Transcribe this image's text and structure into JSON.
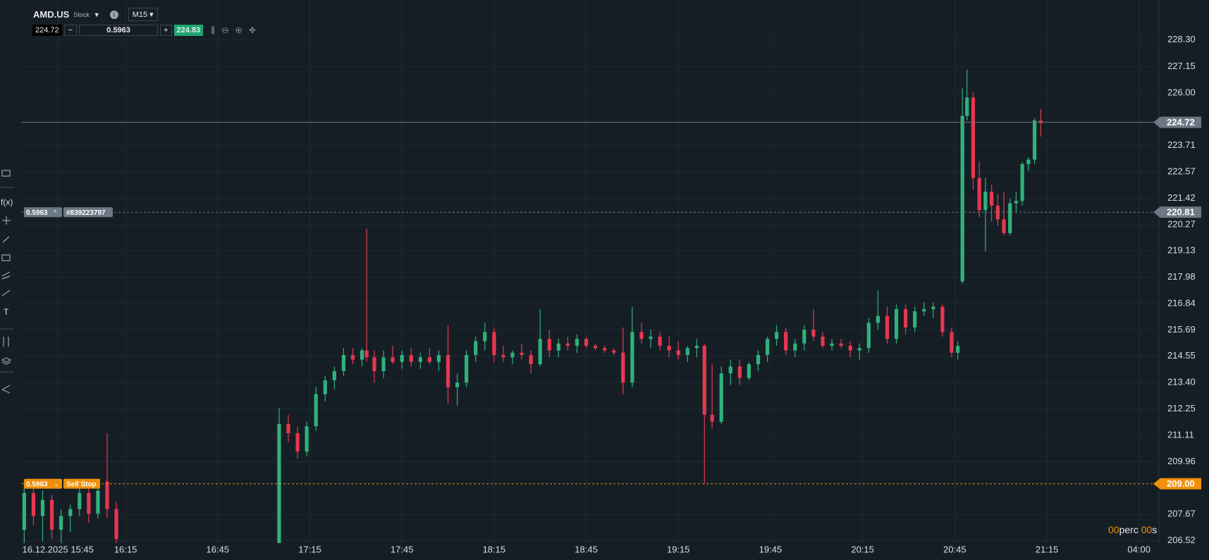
{
  "toolbar": {
    "symbol": "AMD.US",
    "kind": "Stock",
    "timeframe": "M15",
    "bid": 224.72,
    "volume": 0.5963,
    "ask": 224.83
  },
  "tools": {
    "function": "f(x)",
    "text": "T"
  },
  "countdown": {
    "minutes": "00",
    "minutes_unit": "perc",
    "seconds": "00",
    "seconds_unit": "s"
  },
  "chart_data": {
    "type": "candlestick",
    "up_color": "#2fb27b",
    "down_color": "#e5384f",
    "grid": true,
    "xlim": [
      -12,
      358.5
    ],
    "ylim": [
      206.42,
      230.04
    ],
    "xticks": [
      {
        "value": 0,
        "label": "16.12.2025 15:45"
      },
      {
        "value": 22,
        "label": "16:15"
      },
      {
        "value": 52,
        "label": "16:45"
      },
      {
        "value": 82,
        "label": "17:15"
      },
      {
        "value": 112,
        "label": "17:45"
      },
      {
        "value": 142,
        "label": "18:15"
      },
      {
        "value": 172,
        "label": "18:45"
      },
      {
        "value": 202,
        "label": "19:15"
      },
      {
        "value": 232,
        "label": "19:45"
      },
      {
        "value": 262,
        "label": "20:15"
      },
      {
        "value": 292,
        "label": "20:45"
      },
      {
        "value": 322,
        "label": "21:15"
      },
      {
        "value": 352,
        "label": "04:00"
      }
    ],
    "yticks": [
      {
        "value": 228.3,
        "label": "228.30"
      },
      227.15,
      {
        "value": 226,
        "label": "226.00"
      },
      223.71,
      222.57,
      221.42,
      220.27,
      219.13,
      217.98,
      216.84,
      215.69,
      214.55,
      {
        "value": 213.4,
        "label": "213.40"
      },
      212.25,
      211.11,
      209.96,
      207.67,
      206.52
    ],
    "x": [
      -11,
      -8,
      -5,
      -2,
      1,
      4,
      7,
      10,
      13,
      16,
      19,
      72,
      75,
      78,
      81,
      84,
      87,
      90,
      93,
      96,
      99,
      100.5,
      103,
      106,
      109,
      112,
      115,
      118,
      121,
      124,
      127,
      130,
      133,
      136,
      139,
      142,
      145,
      148,
      151,
      154,
      157,
      160,
      163,
      166,
      169,
      172,
      175,
      178,
      181,
      184,
      187,
      190,
      193,
      196,
      199,
      202,
      205,
      208,
      210.5,
      213,
      216,
      219,
      222,
      225,
      228,
      231,
      234,
      237,
      240,
      243,
      246,
      249,
      252,
      255,
      258,
      261,
      264,
      267,
      270,
      273,
      276,
      279,
      282,
      285,
      288,
      291,
      293,
      294.5,
      296,
      298,
      300,
      302,
      304,
      306,
      308,
      310,
      312,
      314,
      316,
      318,
      320
    ],
    "open": [
      207.0,
      208.6,
      207.6,
      208.3,
      207.0,
      207.6,
      207.9,
      208.6,
      207.7,
      209.1,
      207.9,
      206.3,
      211.6,
      211.2,
      210.4,
      211.5,
      212.9,
      213.5,
      213.9,
      214.6,
      214.4,
      214.8,
      214.5,
      213.9,
      214.5,
      214.3,
      214.6,
      214.3,
      214.5,
      214.3,
      214.6,
      213.2,
      213.4,
      214.6,
      215.2,
      215.6,
      214.6,
      214.5,
      214.7,
      214.6,
      214.2,
      215.3,
      214.8,
      215.1,
      215.0,
      215.3,
      215.0,
      214.9,
      214.8,
      214.7,
      213.4,
      215.6,
      215.3,
      215.4,
      215.0,
      214.8,
      214.6,
      214.9,
      215.0,
      212.0,
      211.7,
      213.8,
      214.1,
      213.6,
      214.2,
      214.6,
      215.3,
      215.6,
      214.8,
      215.1,
      215.7,
      215.4,
      215.0,
      215.1,
      215.0,
      214.8,
      214.9,
      216.0,
      216.3,
      215.3,
      216.6,
      215.8,
      216.5,
      216.6,
      216.7,
      215.6,
      214.7,
      217.8,
      225.0,
      225.8,
      222.3,
      220.9,
      221.7,
      221.1,
      220.5,
      219.9,
      221.2,
      221.3,
      222.9,
      223.1,
      224.8
    ],
    "high": [
      209.1,
      208.8,
      208.7,
      208.5,
      207.9,
      208.1,
      208.8,
      208.9,
      208.9,
      211.2,
      208.2,
      212.3,
      212.0,
      211.5,
      211.7,
      213.2,
      213.7,
      214.1,
      214.9,
      214.9,
      214.9,
      220.1,
      214.8,
      214.8,
      215.0,
      214.8,
      214.9,
      214.7,
      214.9,
      214.8,
      215.9,
      213.8,
      214.8,
      215.4,
      216.0,
      215.8,
      215.0,
      214.8,
      215.1,
      214.8,
      216.6,
      215.7,
      215.3,
      215.4,
      215.5,
      215.4,
      215.1,
      215.0,
      214.9,
      215.8,
      216.7,
      216.0,
      215.7,
      215.6,
      215.4,
      215.2,
      215.0,
      215.3,
      215.1,
      214.2,
      214.1,
      214.4,
      214.4,
      214.3,
      214.8,
      215.4,
      215.9,
      215.8,
      215.3,
      215.9,
      216.6,
      215.6,
      215.3,
      215.3,
      215.2,
      215.1,
      216.2,
      217.4,
      216.7,
      216.8,
      216.8,
      216.7,
      216.9,
      216.9,
      216.8,
      215.8,
      215.2,
      226.2,
      227.0,
      226.0,
      223.0,
      222.3,
      222.0,
      221.6,
      221.7,
      221.4,
      221.7,
      223.0,
      223.2,
      224.9,
      225.3
    ],
    "low": [
      206.3,
      207.2,
      206.5,
      206.6,
      206.4,
      206.9,
      207.6,
      207.3,
      207.5,
      207.5,
      206.3,
      206.2,
      210.8,
      210.1,
      210.2,
      211.3,
      212.6,
      213.1,
      213.7,
      214.2,
      214.1,
      214.3,
      213.4,
      213.6,
      214.2,
      214.0,
      214.1,
      214.0,
      214.2,
      213.9,
      212.5,
      212.4,
      213.2,
      214.3,
      214.8,
      214.3,
      214.3,
      214.2,
      214.4,
      213.8,
      214.1,
      214.5,
      214.5,
      214.8,
      214.7,
      214.9,
      214.8,
      214.7,
      214.6,
      212.9,
      213.2,
      215.1,
      214.9,
      214.8,
      214.5,
      214.4,
      214.3,
      214.5,
      209.0,
      211.4,
      211.6,
      213.3,
      213.3,
      213.5,
      213.9,
      214.3,
      215.0,
      214.6,
      214.5,
      214.8,
      215.2,
      214.9,
      214.8,
      214.9,
      214.5,
      214.4,
      214.7,
      215.7,
      215.1,
      215.1,
      215.5,
      215.6,
      216.3,
      216.2,
      215.4,
      214.5,
      214.4,
      217.7,
      224.8,
      221.8,
      220.6,
      219.1,
      220.4,
      220.2,
      219.8,
      219.8,
      220.8,
      221.1,
      222.6,
      222.9,
      224.1
    ],
    "close": [
      208.6,
      207.6,
      208.3,
      207.0,
      207.6,
      207.9,
      208.6,
      207.7,
      208.7,
      207.9,
      206.6,
      211.6,
      211.2,
      210.4,
      211.5,
      212.9,
      213.5,
      213.9,
      214.6,
      214.4,
      214.8,
      214.5,
      213.9,
      214.5,
      214.3,
      214.6,
      214.3,
      214.5,
      214.3,
      214.6,
      213.2,
      213.4,
      214.6,
      215.2,
      215.6,
      214.6,
      214.5,
      214.7,
      214.6,
      214.2,
      215.3,
      214.8,
      215.1,
      215.0,
      215.3,
      215.0,
      214.9,
      214.8,
      214.7,
      213.4,
      215.6,
      215.3,
      215.4,
      215.0,
      214.8,
      214.6,
      214.9,
      215.0,
      212.0,
      211.7,
      213.8,
      214.1,
      213.6,
      214.2,
      214.6,
      215.3,
      215.6,
      214.8,
      215.1,
      215.7,
      215.4,
      215.0,
      215.1,
      215.0,
      214.8,
      214.9,
      216.0,
      216.3,
      215.3,
      216.6,
      215.8,
      216.5,
      216.6,
      216.7,
      215.6,
      214.7,
      215.0,
      225.0,
      225.8,
      222.3,
      220.9,
      221.7,
      221.1,
      220.5,
      219.9,
      221.2,
      221.3,
      222.9,
      223.1,
      224.8,
      224.7
    ],
    "price_lines": [
      {
        "value": 224.72,
        "color": "#6c7884",
        "style": "solid"
      },
      {
        "value": 220.81,
        "color": "#6c7884",
        "style": "dashed",
        "volume": 0.5963,
        "order": "#839223797"
      },
      {
        "value": 209,
        "label": "209.00",
        "color": "#f0900b",
        "style": "dashed",
        "volume": 0.5963,
        "order": "Sell Stop"
      }
    ]
  }
}
